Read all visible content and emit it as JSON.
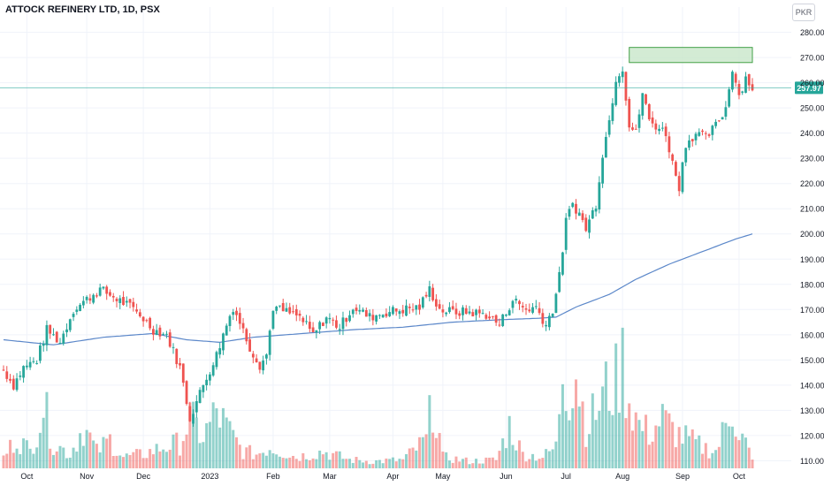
{
  "header": {
    "title": "ATTOCK REFINERY LTD, 1D, PSX",
    "currency": "PKR"
  },
  "colors": {
    "up": "#26a69a",
    "down": "#ef5350",
    "ma": "#5b87c9",
    "price_line": "#26a69a",
    "zone_fill": "#c8e6c9",
    "zone_stroke": "#43a047",
    "grid": "#f0f3fa",
    "axis_text": "#131722"
  },
  "chart_data": {
    "type": "candlestick",
    "title": "ATTOCK REFINERY LTD, 1D, PSX",
    "currency": "PKR",
    "last_price": 257.97,
    "last_price_label": "257.97",
    "ylim": [
      107,
      283
    ],
    "y_ticks": [
      110,
      120,
      130,
      140,
      150,
      160,
      170,
      180,
      190,
      200,
      210,
      220,
      230,
      240,
      250,
      260,
      270,
      280
    ],
    "y_tick_labels": [
      "110.00",
      "120.00",
      "130.00",
      "140.00",
      "150.00",
      "160.00",
      "170.00",
      "180.00",
      "190.00",
      "200.00",
      "210.00",
      "220.00",
      "230.00",
      "240.00",
      "250.00",
      "260.00",
      "270.00",
      "280.00"
    ],
    "x_labels": [
      {
        "label": "Oct",
        "index": 7
      },
      {
        "label": "Nov",
        "index": 25
      },
      {
        "label": "Dec",
        "index": 42
      },
      {
        "label": "2023",
        "index": 62
      },
      {
        "label": "Feb",
        "index": 81
      },
      {
        "label": "Mar",
        "index": 98
      },
      {
        "label": "Apr",
        "index": 117
      },
      {
        "label": "May",
        "index": 132
      },
      {
        "label": "Jun",
        "index": 151
      },
      {
        "label": "Jul",
        "index": 169
      },
      {
        "label": "Aug",
        "index": 186
      },
      {
        "label": "Sep",
        "index": 204
      },
      {
        "label": "Oct",
        "index": 221
      }
    ],
    "resistance_zone": {
      "start_index": 188,
      "end_index": 225,
      "low": 268,
      "high": 274
    },
    "moving_average": [
      {
        "i": 0,
        "v": 158
      },
      {
        "i": 15,
        "v": 156
      },
      {
        "i": 30,
        "v": 159
      },
      {
        "i": 45,
        "v": 160.5
      },
      {
        "i": 55,
        "v": 158
      },
      {
        "i": 65,
        "v": 157
      },
      {
        "i": 75,
        "v": 159
      },
      {
        "i": 90,
        "v": 160.5
      },
      {
        "i": 105,
        "v": 162
      },
      {
        "i": 120,
        "v": 163
      },
      {
        "i": 135,
        "v": 165
      },
      {
        "i": 150,
        "v": 166
      },
      {
        "i": 160,
        "v": 166.5
      },
      {
        "i": 166,
        "v": 167
      },
      {
        "i": 172,
        "v": 171
      },
      {
        "i": 182,
        "v": 176
      },
      {
        "i": 190,
        "v": 182
      },
      {
        "i": 200,
        "v": 188
      },
      {
        "i": 210,
        "v": 193
      },
      {
        "i": 220,
        "v": 198
      },
      {
        "i": 225,
        "v": 200
      }
    ],
    "price_path": [
      {
        "i": 0,
        "v": 146
      },
      {
        "i": 3,
        "v": 140
      },
      {
        "i": 6,
        "v": 147
      },
      {
        "i": 10,
        "v": 150
      },
      {
        "i": 13,
        "v": 162
      },
      {
        "i": 17,
        "v": 157
      },
      {
        "i": 21,
        "v": 170
      },
      {
        "i": 25,
        "v": 174
      },
      {
        "i": 29,
        "v": 178
      },
      {
        "i": 33,
        "v": 175
      },
      {
        "i": 37,
        "v": 172
      },
      {
        "i": 41,
        "v": 168
      },
      {
        "i": 45,
        "v": 162
      },
      {
        "i": 49,
        "v": 160
      },
      {
        "i": 53,
        "v": 147
      },
      {
        "i": 56,
        "v": 127
      },
      {
        "i": 60,
        "v": 140
      },
      {
        "i": 64,
        "v": 152
      },
      {
        "i": 67,
        "v": 164
      },
      {
        "i": 69,
        "v": 171
      },
      {
        "i": 71,
        "v": 165
      },
      {
        "i": 74,
        "v": 155
      },
      {
        "i": 77,
        "v": 148
      },
      {
        "i": 79,
        "v": 152
      },
      {
        "i": 81,
        "v": 171
      },
      {
        "i": 85,
        "v": 169
      },
      {
        "i": 89,
        "v": 167
      },
      {
        "i": 93,
        "v": 160
      },
      {
        "i": 97,
        "v": 167
      },
      {
        "i": 101,
        "v": 163
      },
      {
        "i": 105,
        "v": 171
      },
      {
        "i": 110,
        "v": 167
      },
      {
        "i": 115,
        "v": 169
      },
      {
        "i": 120,
        "v": 170
      },
      {
        "i": 125,
        "v": 171
      },
      {
        "i": 128,
        "v": 178
      },
      {
        "i": 131,
        "v": 170
      },
      {
        "i": 135,
        "v": 169
      },
      {
        "i": 140,
        "v": 169
      },
      {
        "i": 145,
        "v": 168
      },
      {
        "i": 149,
        "v": 164
      },
      {
        "i": 153,
        "v": 174
      },
      {
        "i": 157,
        "v": 170
      },
      {
        "i": 160,
        "v": 171
      },
      {
        "i": 163,
        "v": 164
      },
      {
        "i": 165,
        "v": 170
      },
      {
        "i": 167,
        "v": 183
      },
      {
        "i": 169,
        "v": 205
      },
      {
        "i": 171,
        "v": 212
      },
      {
        "i": 173,
        "v": 208
      },
      {
        "i": 175,
        "v": 202
      },
      {
        "i": 178,
        "v": 212
      },
      {
        "i": 180,
        "v": 232
      },
      {
        "i": 182,
        "v": 245
      },
      {
        "i": 184,
        "v": 262
      },
      {
        "i": 186,
        "v": 266
      },
      {
        "i": 188,
        "v": 243
      },
      {
        "i": 190,
        "v": 240
      },
      {
        "i": 192,
        "v": 256
      },
      {
        "i": 194,
        "v": 245
      },
      {
        "i": 197,
        "v": 242
      },
      {
        "i": 199,
        "v": 240
      },
      {
        "i": 201,
        "v": 228
      },
      {
        "i": 203,
        "v": 219
      },
      {
        "i": 205,
        "v": 236
      },
      {
        "i": 208,
        "v": 240
      },
      {
        "i": 211,
        "v": 238
      },
      {
        "i": 214,
        "v": 243
      },
      {
        "i": 217,
        "v": 250
      },
      {
        "i": 219,
        "v": 266
      },
      {
        "i": 221,
        "v": 255
      },
      {
        "i": 223,
        "v": 262
      },
      {
        "i": 225,
        "v": 258
      }
    ],
    "volume_path": [
      {
        "i": 0,
        "v": 8
      },
      {
        "i": 4,
        "v": 22
      },
      {
        "i": 8,
        "v": 12
      },
      {
        "i": 12,
        "v": 45
      },
      {
        "i": 15,
        "v": 18
      },
      {
        "i": 20,
        "v": 10
      },
      {
        "i": 24,
        "v": 30
      },
      {
        "i": 28,
        "v": 12
      },
      {
        "i": 32,
        "v": 20
      },
      {
        "i": 36,
        "v": 8
      },
      {
        "i": 42,
        "v": 10
      },
      {
        "i": 48,
        "v": 15
      },
      {
        "i": 53,
        "v": 18
      },
      {
        "i": 56,
        "v": 35
      },
      {
        "i": 60,
        "v": 22
      },
      {
        "i": 64,
        "v": 40
      },
      {
        "i": 68,
        "v": 25
      },
      {
        "i": 72,
        "v": 12
      },
      {
        "i": 76,
        "v": 10
      },
      {
        "i": 80,
        "v": 15
      },
      {
        "i": 88,
        "v": 8
      },
      {
        "i": 96,
        "v": 12
      },
      {
        "i": 104,
        "v": 6
      },
      {
        "i": 112,
        "v": 5
      },
      {
        "i": 120,
        "v": 6
      },
      {
        "i": 127,
        "v": 20
      },
      {
        "i": 129,
        "v": 50
      },
      {
        "i": 132,
        "v": 8
      },
      {
        "i": 140,
        "v": 5
      },
      {
        "i": 148,
        "v": 6
      },
      {
        "i": 152,
        "v": 30
      },
      {
        "i": 156,
        "v": 10
      },
      {
        "i": 162,
        "v": 8
      },
      {
        "i": 166,
        "v": 15
      },
      {
        "i": 168,
        "v": 75
      },
      {
        "i": 170,
        "v": 55
      },
      {
        "i": 172,
        "v": 70
      },
      {
        "i": 175,
        "v": 30
      },
      {
        "i": 178,
        "v": 40
      },
      {
        "i": 181,
        "v": 55
      },
      {
        "i": 184,
        "v": 60
      },
      {
        "i": 186,
        "v": 75
      },
      {
        "i": 188,
        "v": 50
      },
      {
        "i": 191,
        "v": 30
      },
      {
        "i": 194,
        "v": 25
      },
      {
        "i": 198,
        "v": 35
      },
      {
        "i": 202,
        "v": 25
      },
      {
        "i": 206,
        "v": 20
      },
      {
        "i": 210,
        "v": 15
      },
      {
        "i": 214,
        "v": 12
      },
      {
        "i": 217,
        "v": 30
      },
      {
        "i": 219,
        "v": 45
      },
      {
        "i": 221,
        "v": 25
      },
      {
        "i": 223,
        "v": 18
      },
      {
        "i": 225,
        "v": 5
      }
    ],
    "candle_count": 226
  }
}
